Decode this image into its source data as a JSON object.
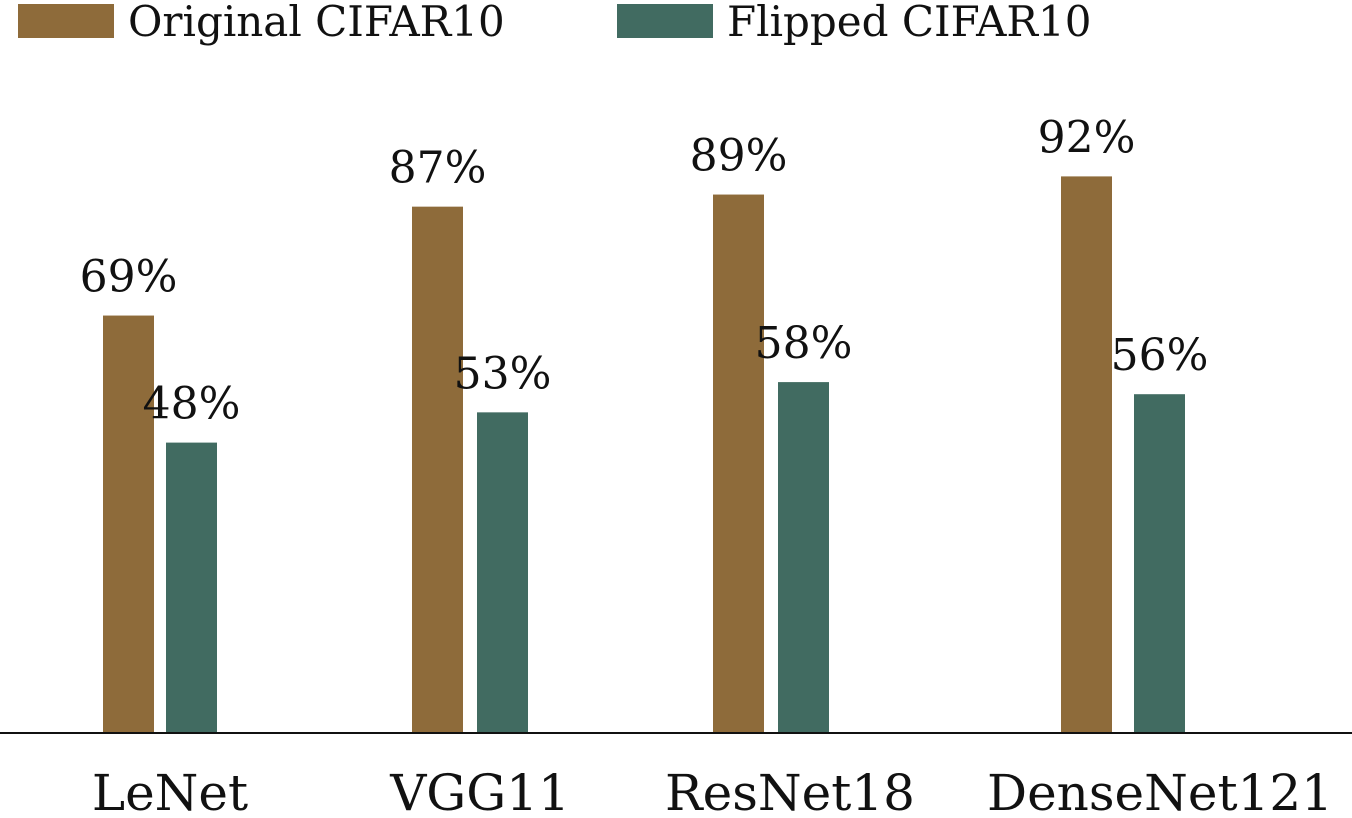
{
  "chart_data": {
    "type": "bar",
    "categories": [
      "LeNet",
      "VGG11",
      "ResNet18",
      "DenseNet121"
    ],
    "series": [
      {
        "name": "Original CIFAR10",
        "values": [
          69,
          87,
          89,
          92
        ],
        "labels": [
          "69%",
          "87%",
          "89%",
          "92%"
        ],
        "color": "#8E6B3A"
      },
      {
        "name": "Flipped CIFAR10",
        "values": [
          48,
          53,
          58,
          56
        ],
        "labels": [
          "48%",
          "53%",
          "58%",
          "56%"
        ],
        "color": "#416B61"
      }
    ],
    "ylim": [
      0,
      100
    ],
    "grid": false,
    "legend_position": "top-left"
  }
}
